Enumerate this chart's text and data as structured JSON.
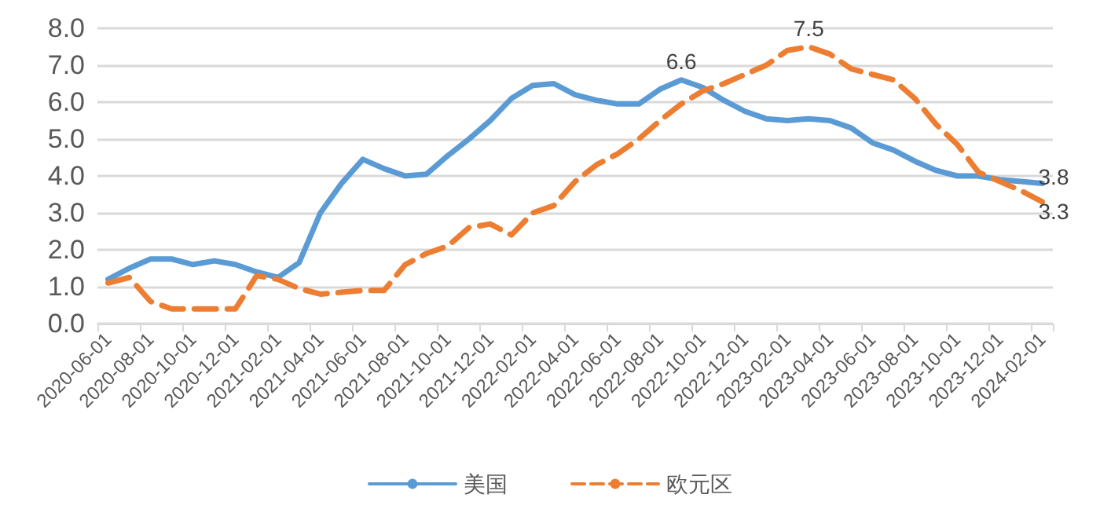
{
  "chart_data": {
    "type": "line",
    "categories": [
      "2020-06-01",
      null,
      "2020-08-01",
      null,
      "2020-10-01",
      null,
      "2020-12-01",
      null,
      "2021-02-01",
      null,
      "2021-04-01",
      null,
      "2021-06-01",
      null,
      "2021-08-01",
      null,
      "2021-10-01",
      null,
      "2021-12-01",
      null,
      "2022-02-01",
      null,
      "2022-04-01",
      null,
      "2022-06-01",
      null,
      "2022-08-01",
      null,
      "2022-10-01",
      null,
      "2022-12-01",
      null,
      "2023-02-01",
      null,
      "2023-04-01",
      null,
      "2023-06-01",
      null,
      "2023-08-01",
      null,
      "2023-10-01",
      null,
      "2023-12-01",
      null,
      "2024-02-01"
    ],
    "series": [
      {
        "name": "美国",
        "color": "#5b9bd5",
        "line_style": "solid",
        "values": [
          1.2,
          1.5,
          1.75,
          1.75,
          1.6,
          1.7,
          1.6,
          1.4,
          1.25,
          1.65,
          3.0,
          3.8,
          4.45,
          4.2,
          4.0,
          4.05,
          4.55,
          5.0,
          5.5,
          6.1,
          6.45,
          6.5,
          6.2,
          6.05,
          5.95,
          5.95,
          6.35,
          6.6,
          6.4,
          6.05,
          5.75,
          5.55,
          5.5,
          5.55,
          5.5,
          5.3,
          4.9,
          4.7,
          4.4,
          4.15,
          4.0,
          4.0,
          3.9,
          3.85,
          3.8
        ],
        "value_labels": [
          null,
          null,
          null,
          null,
          null,
          null,
          null,
          null,
          null,
          null,
          null,
          null,
          null,
          null,
          null,
          null,
          null,
          null,
          null,
          null,
          null,
          null,
          null,
          null,
          null,
          null,
          null,
          "6.6",
          null,
          null,
          null,
          null,
          null,
          null,
          null,
          null,
          null,
          null,
          null,
          null,
          null,
          null,
          null,
          null,
          "3.8"
        ]
      },
      {
        "name": "欧元区",
        "color": "#ed7d31",
        "line_style": "dashed",
        "values": [
          1.1,
          1.25,
          0.6,
          0.4,
          0.4,
          0.4,
          0.4,
          1.3,
          1.2,
          0.95,
          0.8,
          0.85,
          0.9,
          0.9,
          1.6,
          1.9,
          2.1,
          2.6,
          2.7,
          2.4,
          3.0,
          3.2,
          3.85,
          4.3,
          4.6,
          5.0,
          5.5,
          5.95,
          6.3,
          6.5,
          6.75,
          7.0,
          7.4,
          7.5,
          7.3,
          6.9,
          6.75,
          6.6,
          6.1,
          5.4,
          4.85,
          4.1,
          3.85,
          3.6,
          3.3
        ],
        "value_labels": [
          null,
          null,
          null,
          null,
          null,
          null,
          null,
          null,
          null,
          null,
          null,
          null,
          null,
          null,
          null,
          null,
          null,
          null,
          null,
          null,
          null,
          null,
          null,
          null,
          null,
          null,
          null,
          null,
          null,
          null,
          null,
          null,
          null,
          "7.5",
          null,
          null,
          null,
          null,
          null,
          null,
          null,
          null,
          null,
          null,
          "3.3"
        ]
      }
    ],
    "ylim": [
      0,
      8
    ],
    "yticks": [
      "0.0",
      "1.0",
      "2.0",
      "3.0",
      "4.0",
      "5.0",
      "6.0",
      "7.0",
      "8.0"
    ],
    "grid": "y",
    "legend": "bottom",
    "marker": "none"
  }
}
